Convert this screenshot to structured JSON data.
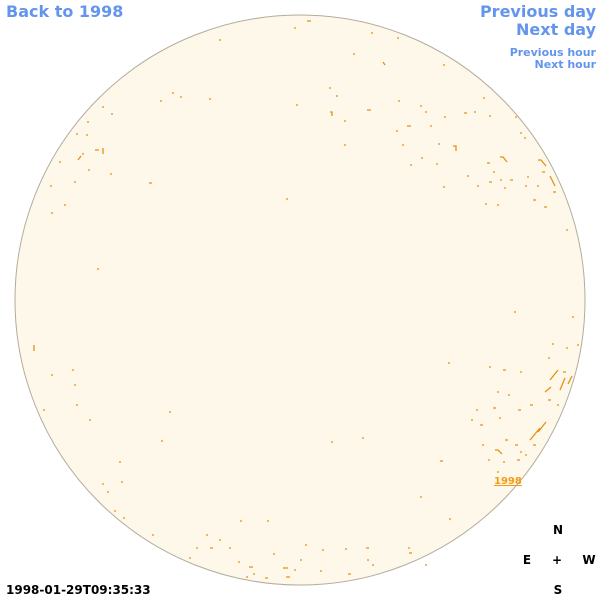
{
  "nav": {
    "back": "Back to 1998",
    "previous_day": "Previous day",
    "next_day": "Next day",
    "previous_hour": "Previous hour",
    "next_hour": "Next hour"
  },
  "region_label": "1998",
  "compass": {
    "north": "N",
    "east": "E",
    "center": "+",
    "west": "W",
    "south": "S"
  },
  "timestamp": "1998-01-29T09:35:33"
}
